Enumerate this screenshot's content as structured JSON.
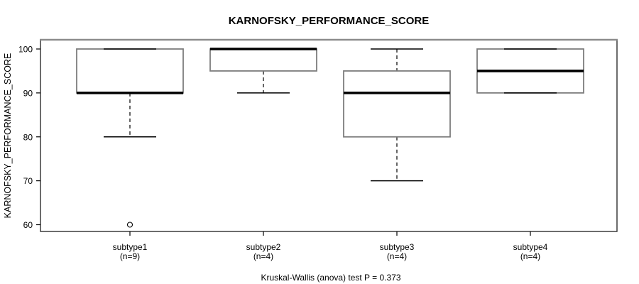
{
  "chart_data": {
    "type": "boxplot",
    "title": "KARNOFSKY_PERFORMANCE_SCORE",
    "ylabel": "KARNOFSKY_PERFORMANCE_SCORE",
    "caption": "Kruskal-Wallis (anova) test P = 0.373",
    "ylim": [
      60,
      100
    ],
    "yticks": [
      100,
      90,
      80,
      70,
      60
    ],
    "grid": false,
    "legend": "none",
    "groups": [
      {
        "label": "subtype1",
        "n_label": "(n=9)",
        "q1": 90,
        "median": 90,
        "q3": 100,
        "whisker_low": 80,
        "whisker_high": 100,
        "outliers": [
          60
        ]
      },
      {
        "label": "subtype2",
        "n_label": "(n=4)",
        "q1": 95,
        "median": 100,
        "q3": 100,
        "whisker_low": 90,
        "whisker_high": 100,
        "outliers": []
      },
      {
        "label": "subtype3",
        "n_label": "(n=4)",
        "q1": 80,
        "median": 90,
        "q3": 95,
        "whisker_low": 70,
        "whisker_high": 100,
        "outliers": []
      },
      {
        "label": "subtype4",
        "n_label": "(n=4)",
        "q1": 90,
        "median": 95,
        "q3": 100,
        "whisker_low": 90,
        "whisker_high": 100,
        "outliers": []
      }
    ],
    "colors": {
      "box_border": "#7d7d7d",
      "plot_border": "#2e2e2e",
      "plot_border_top": "#8c8c8c",
      "line": "#000000",
      "background": "#ffffff"
    }
  }
}
